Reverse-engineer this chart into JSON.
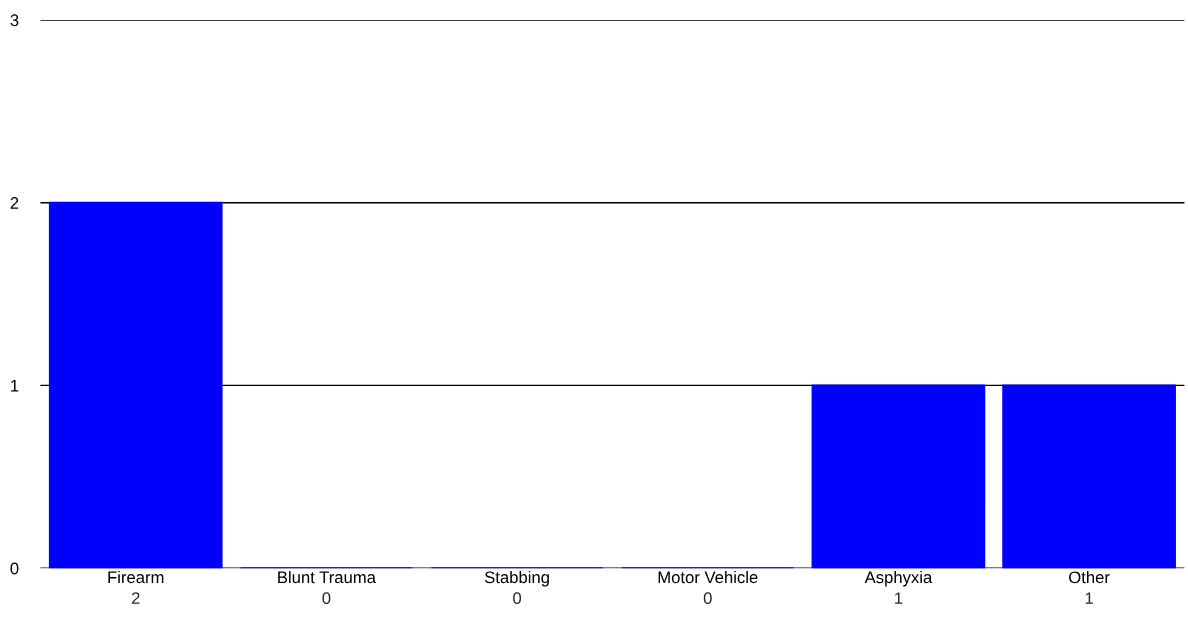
{
  "chart_data": {
    "type": "bar",
    "categories": [
      "Firearm",
      "Blunt Trauma",
      "Stabbing",
      "Motor Vehicle",
      "Asphyxia",
      "Other"
    ],
    "values": [
      2,
      0,
      0,
      0,
      1,
      1
    ],
    "color": "#0000ff",
    "ylim": [
      0,
      3
    ],
    "yticks": [
      0,
      1,
      2,
      3
    ],
    "grid": "y",
    "data_labels": true,
    "legend": false
  }
}
